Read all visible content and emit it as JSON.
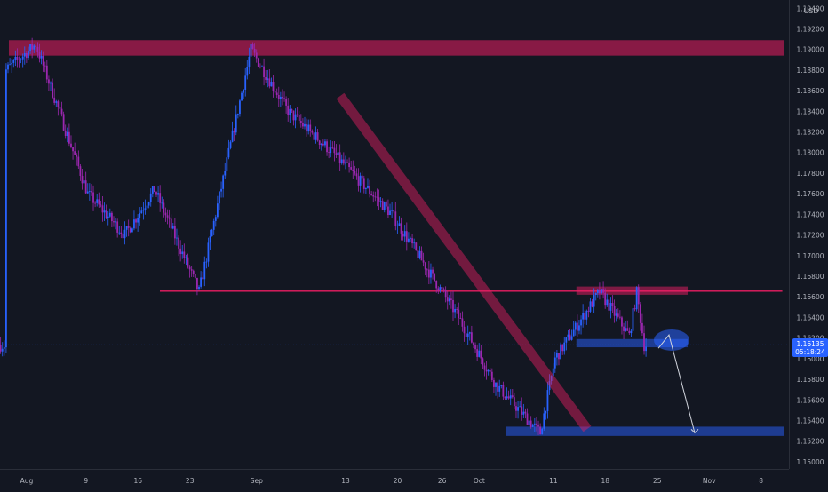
{
  "chart_data": {
    "type": "candlestick",
    "currency": "USD",
    "x_tick_labels": [
      "Aug",
      "9",
      "16",
      "23",
      "Sep",
      "13",
      "20",
      "26",
      "Oct",
      "11",
      "18",
      "25",
      "Nov",
      "8"
    ],
    "y_tick_labels": [
      "1.19400",
      "1.19200",
      "1.19000",
      "1.18800",
      "1.18600",
      "1.18400",
      "1.18200",
      "1.18000",
      "1.17800",
      "1.17600",
      "1.17400",
      "1.17200",
      "1.17000",
      "1.16800",
      "1.16600",
      "1.16400",
      "1.16200",
      "1.16000",
      "1.15800",
      "1.15600",
      "1.15400",
      "1.15200",
      "1.15000"
    ],
    "ylim": [
      1.1493,
      1.1948
    ],
    "grid": false,
    "current_price": "1.16135",
    "countdown": "05:18:24",
    "up_color": "#2962ff",
    "down_color": "#9c27b0",
    "zones": [
      {
        "name": "resistance-top",
        "price_low": 1.1894,
        "price_high": 1.1909,
        "color": "#e91e63"
      },
      {
        "name": "resistance-mid",
        "price_low": 1.1662,
        "price_high": 1.167,
        "color": "#e91e63"
      },
      {
        "name": "demand-box",
        "price_low": 1.1611,
        "price_high": 1.1619,
        "color": "#2962ff"
      },
      {
        "name": "support-bottom",
        "price_low": 1.1525,
        "price_high": 1.1534,
        "color": "#2962ff"
      }
    ],
    "support_line_price": 1.16655,
    "key_points": [
      {
        "date": "Aug 1",
        "price": 1.188
      },
      {
        "date": "Aug 5",
        "price": 1.1905
      },
      {
        "date": "Aug 12",
        "price": 1.176
      },
      {
        "date": "Aug 17",
        "price": 1.172
      },
      {
        "date": "Aug 21",
        "price": 1.1764
      },
      {
        "date": "Aug 27",
        "price": 1.1665
      },
      {
        "date": "Sep 3",
        "price": 1.19
      },
      {
        "date": "Sep 8",
        "price": 1.184
      },
      {
        "date": "Sep 14",
        "price": 1.18
      },
      {
        "date": "Sep 22",
        "price": 1.174
      },
      {
        "date": "Oct 1",
        "price": 1.164
      },
      {
        "date": "Oct 6",
        "price": 1.1575
      },
      {
        "date": "Oct 12",
        "price": 1.1528
      },
      {
        "date": "Oct 14",
        "price": 1.16
      },
      {
        "date": "Oct 20",
        "price": 1.1665
      },
      {
        "date": "Oct 24",
        "price": 1.1622
      },
      {
        "date": "Oct 25",
        "price": 1.1664
      },
      {
        "date": "Oct 26",
        "price": 1.1613
      }
    ]
  }
}
